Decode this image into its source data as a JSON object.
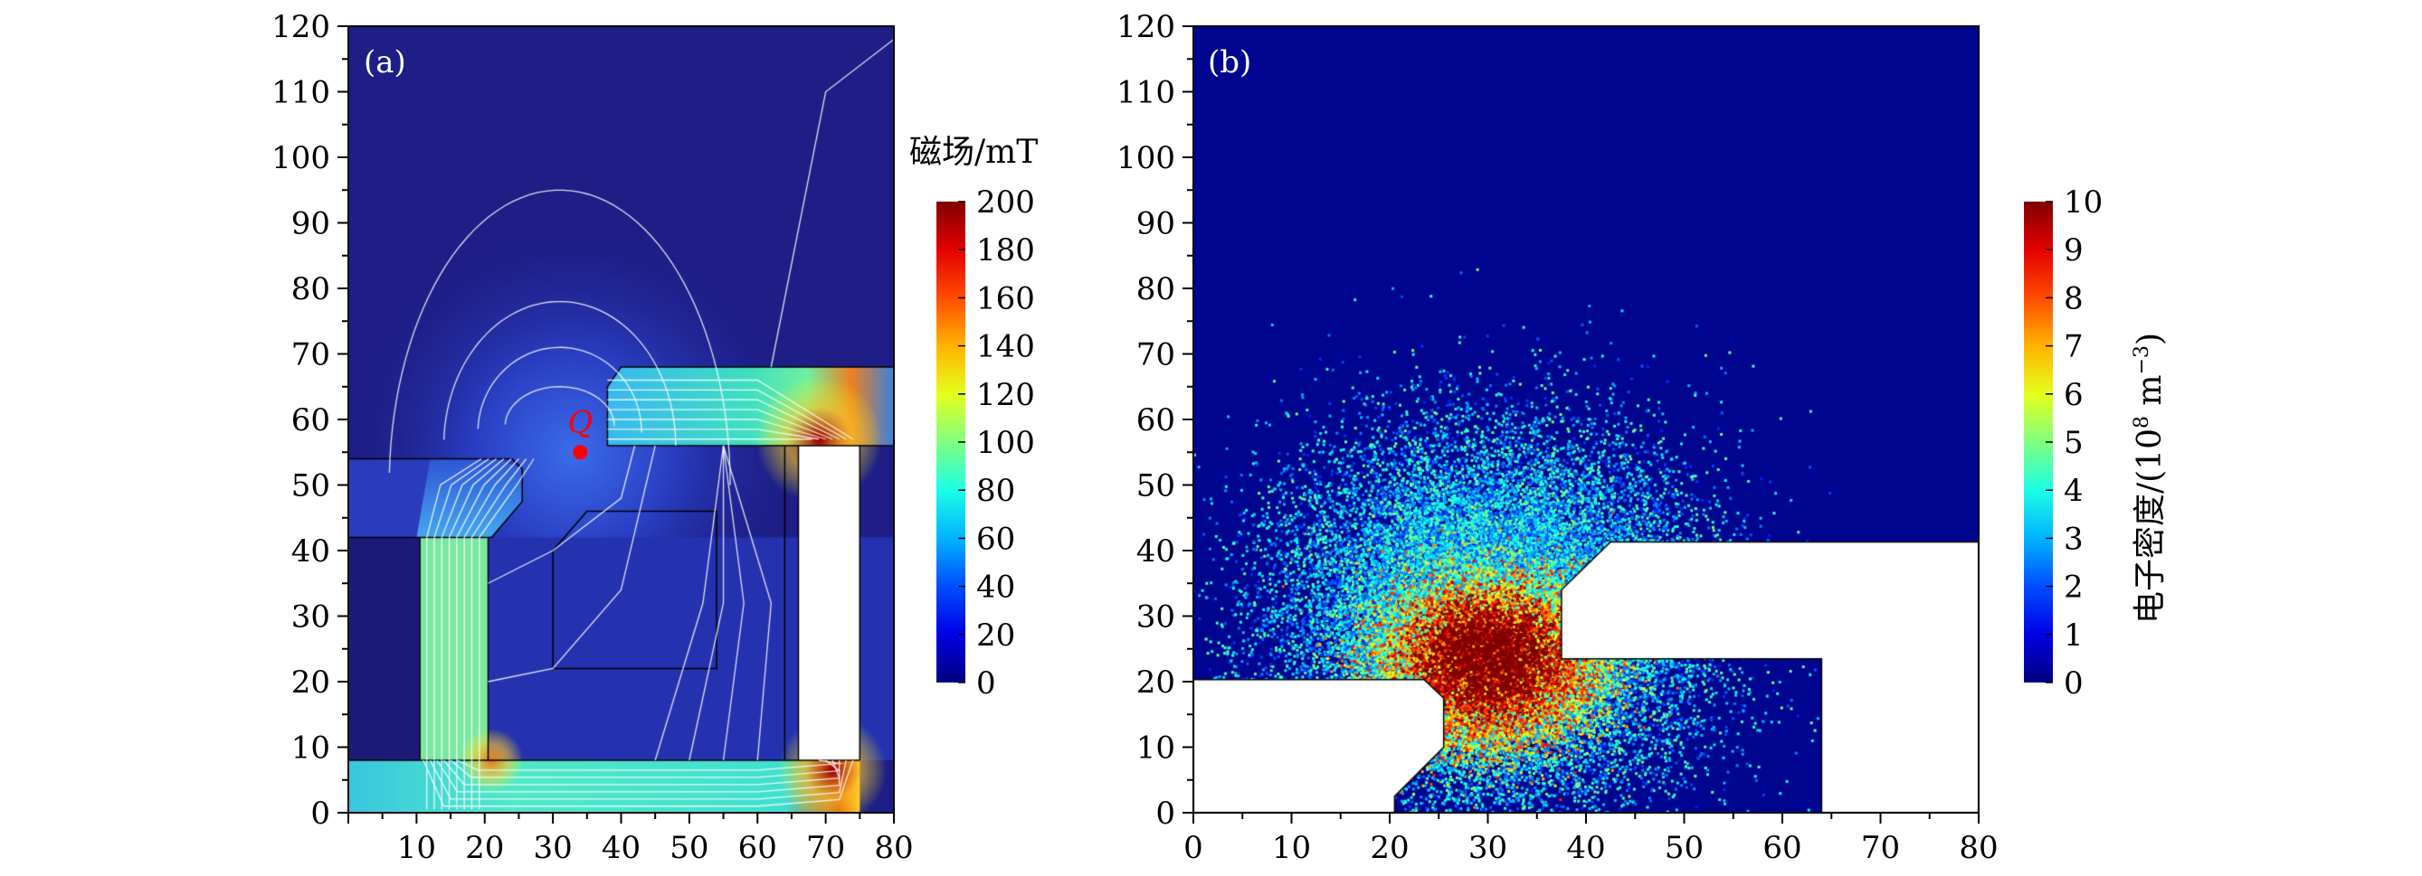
{
  "chart_data": [
    {
      "type": "heatmap",
      "panel_label": "(a)",
      "xlim": [
        0,
        80
      ],
      "ylim": [
        0,
        120
      ],
      "xticks": [
        "10",
        "20",
        "30",
        "40",
        "50",
        "60",
        "70",
        "80"
      ],
      "yticks": [
        "0",
        "10",
        "20",
        "30",
        "40",
        "50",
        "60",
        "70",
        "80",
        "90",
        "100",
        "110",
        "120"
      ],
      "colorbar": {
        "title": "磁场/mT",
        "range": [
          0,
          200
        ],
        "ticks": [
          "0",
          "20",
          "40",
          "60",
          "80",
          "100",
          "120",
          "140",
          "160",
          "180",
          "200"
        ],
        "colormap": "jet"
      },
      "annotations": [
        {
          "text": "Q",
          "x": 34,
          "y": 55,
          "color": "#ff0000"
        }
      ],
      "field_lines": "white"
    },
    {
      "type": "heatmap",
      "panel_label": "(b)",
      "xlim": [
        0,
        80
      ],
      "ylim": [
        0,
        120
      ],
      "xticks": [
        "0",
        "10",
        "20",
        "30",
        "40",
        "50",
        "60",
        "70",
        "80"
      ],
      "yticks": [
        "0",
        "10",
        "20",
        "30",
        "40",
        "50",
        "60",
        "70",
        "80",
        "90",
        "100",
        "110",
        "120"
      ],
      "colorbar": {
        "title": "电子密度/(10",
        "title_sup": "8",
        "title_unit": " m",
        "title_unit_sup": "−3",
        "title_end": ")",
        "range": [
          0,
          10
        ],
        "ticks": [
          "0",
          "1",
          "2",
          "3",
          "4",
          "5",
          "6",
          "7",
          "8",
          "9",
          "10"
        ],
        "colormap": "jet"
      },
      "density_peak": {
        "x": 30,
        "y": 24,
        "value": 10
      }
    }
  ]
}
